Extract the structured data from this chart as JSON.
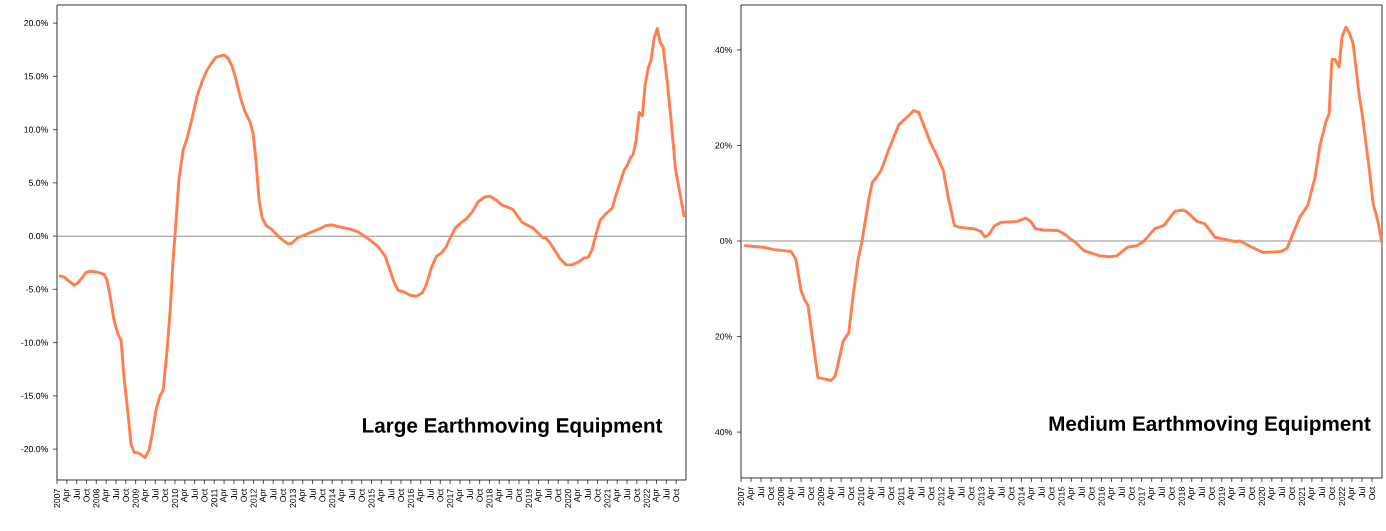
{
  "chart_data": [
    {
      "type": "line",
      "title": "Large Earthmoving Equipment",
      "x": [
        2007.08,
        2007.18,
        2007.33,
        2007.43,
        2007.53,
        2007.64,
        2007.74,
        2007.84,
        2008.04,
        2008.2,
        2008.27,
        2008.35,
        2008.45,
        2008.55,
        2008.63,
        2008.7,
        2008.81,
        2008.88,
        2008.96,
        2009.09,
        2009.24,
        2009.34,
        2009.42,
        2009.52,
        2009.62,
        2009.7,
        2009.8,
        2009.88,
        2009.95,
        2010.03,
        2010.1,
        2010.21,
        2010.31,
        2010.44,
        2010.56,
        2010.69,
        2010.82,
        2010.94,
        2011.05,
        2011.15,
        2011.25,
        2011.35,
        2011.45,
        2011.56,
        2011.66,
        2011.78,
        2011.91,
        2011.99,
        2012.06,
        2012.14,
        2012.22,
        2012.32,
        2012.47,
        2012.62,
        2012.75,
        2012.88,
        2012.98,
        2013.11,
        2013.29,
        2013.49,
        2013.69,
        2013.85,
        2014.0,
        2014.2,
        2014.46,
        2014.66,
        2014.86,
        2015.02,
        2015.17,
        2015.35,
        2015.47,
        2015.58,
        2015.68,
        2015.83,
        2015.98,
        2016.14,
        2016.29,
        2016.39,
        2016.52,
        2016.65,
        2016.8,
        2016.9,
        2017.0,
        2017.13,
        2017.26,
        2017.41,
        2017.56,
        2017.71,
        2017.87,
        2018.02,
        2018.17,
        2018.32,
        2018.48,
        2018.6,
        2018.71,
        2018.83,
        2018.98,
        2019.11,
        2019.24,
        2019.34,
        2019.44,
        2019.54,
        2019.67,
        2019.8,
        2019.95,
        2020.1,
        2020.26,
        2020.41,
        2020.51,
        2020.61,
        2020.72,
        2020.82,
        2020.95,
        2021.12,
        2021.22,
        2021.33,
        2021.43,
        2021.5,
        2021.58,
        2021.66,
        2021.73,
        2021.81,
        2021.89,
        2021.96,
        2022.04,
        2022.11,
        2022.19,
        2022.27,
        2022.34,
        2022.42,
        2022.52,
        2022.62,
        2022.73,
        2022.83,
        2022.95
      ],
      "series": [
        {
          "color": "#ff7f50",
          "values": [
            -3.75,
            -3.85,
            -4.3,
            -4.6,
            -4.4,
            -3.9,
            -3.4,
            -3.3,
            -3.4,
            -3.6,
            -4.1,
            -5.6,
            -7.9,
            -9.2,
            -9.8,
            -13.1,
            -16.8,
            -19.5,
            -20.3,
            -20.4,
            -20.8,
            -20.1,
            -18.6,
            -16.3,
            -15.0,
            -14.5,
            -10.7,
            -6.9,
            -2.4,
            1.5,
            5.3,
            8.1,
            9.2,
            11.1,
            13.1,
            14.5,
            15.6,
            16.3,
            16.8,
            16.9,
            17.0,
            16.7,
            16.0,
            14.6,
            13.1,
            11.7,
            10.7,
            9.6,
            7.1,
            3.4,
            1.7,
            1.0,
            0.6,
            0.0,
            -0.4,
            -0.75,
            -0.65,
            -0.2,
            0.1,
            0.4,
            0.7,
            1.0,
            1.05,
            0.85,
            0.65,
            0.4,
            -0.1,
            -0.55,
            -1.0,
            -1.9,
            -3.2,
            -4.4,
            -5.1,
            -5.25,
            -5.55,
            -5.65,
            -5.35,
            -4.6,
            -3.0,
            -1.9,
            -1.5,
            -1.0,
            -0.2,
            0.75,
            1.2,
            1.6,
            2.25,
            3.2,
            3.65,
            3.75,
            3.4,
            2.9,
            2.7,
            2.5,
            1.9,
            1.3,
            1.0,
            0.75,
            0.3,
            -0.1,
            -0.2,
            -0.65,
            -1.4,
            -2.15,
            -2.7,
            -2.7,
            -2.45,
            -2.05,
            -2.0,
            -1.3,
            0.3,
            1.5,
            2.05,
            2.6,
            3.85,
            5.1,
            6.2,
            6.6,
            7.3,
            7.7,
            9.0,
            11.6,
            11.3,
            14.2,
            15.8,
            16.5,
            18.6,
            19.5,
            18.2,
            17.7,
            14.6,
            10.9,
            6.4,
            4.3,
            1.9
          ]
        }
      ],
      "xlim": [
        2007,
        2023
      ],
      "ylim": [
        -22.9,
        21.7
      ],
      "xticks": [
        {
          "value": 2007,
          "label": "2007"
        },
        {
          "value": 2007.25,
          "label": "Apr"
        },
        {
          "value": 2007.5,
          "label": "Jul"
        },
        {
          "value": 2007.75,
          "label": "Oct"
        },
        {
          "value": 2008,
          "label": "2008"
        },
        {
          "value": 2008.25,
          "label": "Apr"
        },
        {
          "value": 2008.5,
          "label": "Jul"
        },
        {
          "value": 2008.75,
          "label": "Oct"
        },
        {
          "value": 2009,
          "label": "2009"
        },
        {
          "value": 2009.25,
          "label": "Apr"
        },
        {
          "value": 2009.5,
          "label": "Jul"
        },
        {
          "value": 2009.75,
          "label": "Oct"
        },
        {
          "value": 2010,
          "label": "2010"
        },
        {
          "value": 2010.25,
          "label": "Apr"
        },
        {
          "value": 2010.5,
          "label": "Jul"
        },
        {
          "value": 2010.75,
          "label": "Oct"
        },
        {
          "value": 2011,
          "label": "2011"
        },
        {
          "value": 2011.25,
          "label": "Apr"
        },
        {
          "value": 2011.5,
          "label": "Jul"
        },
        {
          "value": 2011.75,
          "label": "Oct"
        },
        {
          "value": 2012,
          "label": "2012"
        },
        {
          "value": 2012.25,
          "label": "Apr"
        },
        {
          "value": 2012.5,
          "label": "Jul"
        },
        {
          "value": 2012.75,
          "label": "Oct"
        },
        {
          "value": 2013,
          "label": "2013"
        },
        {
          "value": 2013.25,
          "label": "Apr"
        },
        {
          "value": 2013.5,
          "label": "Jul"
        },
        {
          "value": 2013.75,
          "label": "Oct"
        },
        {
          "value": 2014,
          "label": "2014"
        },
        {
          "value": 2014.25,
          "label": "Apr"
        },
        {
          "value": 2014.5,
          "label": "Jul"
        },
        {
          "value": 2014.75,
          "label": "Oct"
        },
        {
          "value": 2015,
          "label": "2015"
        },
        {
          "value": 2015.25,
          "label": "Apr"
        },
        {
          "value": 2015.5,
          "label": "Jul"
        },
        {
          "value": 2015.75,
          "label": "Oct"
        },
        {
          "value": 2016,
          "label": "2016"
        },
        {
          "value": 2016.25,
          "label": "Apr"
        },
        {
          "value": 2016.5,
          "label": "Jul"
        },
        {
          "value": 2016.75,
          "label": "Oct"
        },
        {
          "value": 2017,
          "label": "2017"
        },
        {
          "value": 2017.25,
          "label": "Apr"
        },
        {
          "value": 2017.5,
          "label": "Jul"
        },
        {
          "value": 2017.75,
          "label": "Oct"
        },
        {
          "value": 2018,
          "label": "2018"
        },
        {
          "value": 2018.25,
          "label": "Apr"
        },
        {
          "value": 2018.5,
          "label": "Jul"
        },
        {
          "value": 2018.75,
          "label": "Oct"
        },
        {
          "value": 2019,
          "label": "2019"
        },
        {
          "value": 2019.25,
          "label": "Apr"
        },
        {
          "value": 2019.5,
          "label": "Jul"
        },
        {
          "value": 2019.75,
          "label": "Oct"
        },
        {
          "value": 2020,
          "label": "2020"
        },
        {
          "value": 2020.25,
          "label": "Apr"
        },
        {
          "value": 2020.5,
          "label": "Jul"
        },
        {
          "value": 2020.75,
          "label": "Oct"
        },
        {
          "value": 2021,
          "label": "2021"
        },
        {
          "value": 2021.25,
          "label": "Apr"
        },
        {
          "value": 2021.5,
          "label": "Jul"
        },
        {
          "value": 2021.75,
          "label": "Oct"
        },
        {
          "value": 2022,
          "label": "2022"
        },
        {
          "value": 2022.25,
          "label": "Apr"
        },
        {
          "value": 2022.5,
          "label": "Jul"
        },
        {
          "value": 2022.75,
          "label": "Oct"
        }
      ],
      "yticks": [
        {
          "value": -20,
          "label": "-20.0%"
        },
        {
          "value": -15,
          "label": "-15.0%"
        },
        {
          "value": -10,
          "label": "-10.0%"
        },
        {
          "value": -5,
          "label": "-5.0%"
        },
        {
          "value": 0,
          "label": "0.0%"
        },
        {
          "value": 5,
          "label": "5.0%"
        },
        {
          "value": 10,
          "label": "10.0%"
        },
        {
          "value": 15,
          "label": "15.0%"
        },
        {
          "value": 20,
          "label": "20.0%"
        }
      ],
      "ref_lines": [
        {
          "axis": "y",
          "value": 0,
          "color": "#909090"
        }
      ]
    },
    {
      "type": "line",
      "title": "Medium Earthmoving Equipment",
      "x": [
        2007.11,
        2007.55,
        2007.83,
        2008.25,
        2008.37,
        2008.5,
        2008.59,
        2008.67,
        2008.92,
        2009.05,
        2009.25,
        2009.35,
        2009.55,
        2009.69,
        2009.8,
        2009.92,
        2010.03,
        2010.1,
        2010.2,
        2010.28,
        2010.39,
        2010.5,
        2010.7,
        2010.94,
        2011.14,
        2011.31,
        2011.44,
        2011.72,
        2011.88,
        2012.05,
        2012.18,
        2012.33,
        2012.44,
        2012.83,
        2012.99,
        2013.08,
        2013.18,
        2013.33,
        2013.5,
        2013.9,
        2014.1,
        2014.23,
        2014.35,
        2014.55,
        2014.91,
        2015.1,
        2015.23,
        2015.38,
        2015.55,
        2015.7,
        2015.95,
        2016.2,
        2016.38,
        2016.65,
        2016.88,
        2017.05,
        2017.33,
        2017.55,
        2017.83,
        2018.03,
        2018.13,
        2018.38,
        2018.58,
        2018.83,
        2019.05,
        2019.33,
        2019.46,
        2019.73,
        2020.03,
        2020.48,
        2020.63,
        2020.83,
        2020.95,
        2021.15,
        2021.33,
        2021.45,
        2021.6,
        2021.68,
        2021.75,
        2021.83,
        2021.93,
        2022.0,
        2022.1,
        2022.18,
        2022.28,
        2022.43,
        2022.5,
        2022.68,
        2022.78,
        2022.9,
        2023.0
      ],
      "series": [
        {
          "color": "#ff7f50",
          "values": [
            -1.0,
            -1.3,
            -1.8,
            -2.2,
            -3.8,
            -10.4,
            -12.4,
            -13.4,
            -28.6,
            -28.8,
            -29.2,
            -28.3,
            -21.0,
            -19.2,
            -11.3,
            -4.0,
            0.4,
            4.1,
            9.2,
            12.3,
            13.4,
            14.8,
            19.4,
            24.3,
            25.9,
            27.3,
            26.9,
            20.8,
            18.0,
            14.8,
            8.8,
            3.2,
            2.9,
            2.5,
            2.0,
            0.9,
            1.3,
            3.2,
            3.9,
            4.1,
            4.8,
            4.1,
            2.6,
            2.3,
            2.2,
            1.3,
            0.4,
            -0.5,
            -2.0,
            -2.4,
            -3.1,
            -3.3,
            -3.1,
            -1.3,
            -1.0,
            -0.1,
            2.6,
            3.2,
            6.2,
            6.5,
            6.1,
            4.1,
            3.6,
            0.8,
            0.4,
            -0.1,
            0.0,
            -1.2,
            -2.4,
            -2.2,
            -1.5,
            2.6,
            5.0,
            7.5,
            13.4,
            19.9,
            25.0,
            26.6,
            38.0,
            38.0,
            36.4,
            42.7,
            44.8,
            43.6,
            41.3,
            30.6,
            26.9,
            15.2,
            7.8,
            4.1,
            -0.5
          ]
        }
      ],
      "xlim": [
        2007,
        2023
      ],
      "ylim": [
        -49.6,
        49.4
      ],
      "xticks": [
        {
          "value": 2007,
          "label": "2007"
        },
        {
          "value": 2007.25,
          "label": "Apr"
        },
        {
          "value": 2007.5,
          "label": "Jul"
        },
        {
          "value": 2007.75,
          "label": "Oct"
        },
        {
          "value": 2008,
          "label": "2008"
        },
        {
          "value": 2008.25,
          "label": "Apr"
        },
        {
          "value": 2008.5,
          "label": "Jul"
        },
        {
          "value": 2008.75,
          "label": "Oct"
        },
        {
          "value": 2009,
          "label": "2009"
        },
        {
          "value": 2009.25,
          "label": "Apr"
        },
        {
          "value": 2009.5,
          "label": "Jul"
        },
        {
          "value": 2009.75,
          "label": "Oct"
        },
        {
          "value": 2010,
          "label": "2010"
        },
        {
          "value": 2010.25,
          "label": "Apr"
        },
        {
          "value": 2010.5,
          "label": "Jul"
        },
        {
          "value": 2010.75,
          "label": "Oct"
        },
        {
          "value": 2011,
          "label": "2011"
        },
        {
          "value": 2011.25,
          "label": "Apr"
        },
        {
          "value": 2011.5,
          "label": "Jul"
        },
        {
          "value": 2011.75,
          "label": "Oct"
        },
        {
          "value": 2012,
          "label": "2012"
        },
        {
          "value": 2012.25,
          "label": "Apr"
        },
        {
          "value": 2012.5,
          "label": "Jul"
        },
        {
          "value": 2012.75,
          "label": "Oct"
        },
        {
          "value": 2013,
          "label": "2013"
        },
        {
          "value": 2013.25,
          "label": "Apr"
        },
        {
          "value": 2013.5,
          "label": "Jul"
        },
        {
          "value": 2013.75,
          "label": "Oct"
        },
        {
          "value": 2014,
          "label": "2014"
        },
        {
          "value": 2014.25,
          "label": "Apr"
        },
        {
          "value": 2014.5,
          "label": "Jul"
        },
        {
          "value": 2014.75,
          "label": "Oct"
        },
        {
          "value": 2015,
          "label": "2015"
        },
        {
          "value": 2015.25,
          "label": "Apr"
        },
        {
          "value": 2015.5,
          "label": "Jul"
        },
        {
          "value": 2015.75,
          "label": "Oct"
        },
        {
          "value": 2016,
          "label": "2016"
        },
        {
          "value": 2016.25,
          "label": "Apr"
        },
        {
          "value": 2016.5,
          "label": "Jul"
        },
        {
          "value": 2016.75,
          "label": "Oct"
        },
        {
          "value": 2017,
          "label": "2017"
        },
        {
          "value": 2017.25,
          "label": "Apr"
        },
        {
          "value": 2017.5,
          "label": "Jul"
        },
        {
          "value": 2017.75,
          "label": "Oct"
        },
        {
          "value": 2018,
          "label": "2018"
        },
        {
          "value": 2018.25,
          "label": "Apr"
        },
        {
          "value": 2018.5,
          "label": "Jul"
        },
        {
          "value": 2018.75,
          "label": "Oct"
        },
        {
          "value": 2019,
          "label": "2019"
        },
        {
          "value": 2019.25,
          "label": "Apr"
        },
        {
          "value": 2019.5,
          "label": "Jul"
        },
        {
          "value": 2019.75,
          "label": "Oct"
        },
        {
          "value": 2020,
          "label": "2020"
        },
        {
          "value": 2020.25,
          "label": "Apr"
        },
        {
          "value": 2020.5,
          "label": "Jul"
        },
        {
          "value": 2020.75,
          "label": "Oct"
        },
        {
          "value": 2021,
          "label": "2021"
        },
        {
          "value": 2021.25,
          "label": "Apr"
        },
        {
          "value": 2021.5,
          "label": "Jul"
        },
        {
          "value": 2021.75,
          "label": "Oct"
        },
        {
          "value": 2022,
          "label": "2022"
        },
        {
          "value": 2022.25,
          "label": "Apr"
        },
        {
          "value": 2022.5,
          "label": "Jul"
        },
        {
          "value": 2022.75,
          "label": "Oct"
        }
      ],
      "yticks": [
        {
          "value": -40,
          "label": "40%"
        },
        {
          "value": -20,
          "label": "20%"
        },
        {
          "value": 0,
          "label": "0%"
        },
        {
          "value": 20,
          "label": "20%"
        },
        {
          "value": 40,
          "label": "40%"
        }
      ],
      "ref_lines": [
        {
          "axis": "y",
          "value": 0,
          "color": "#909090"
        }
      ]
    }
  ]
}
